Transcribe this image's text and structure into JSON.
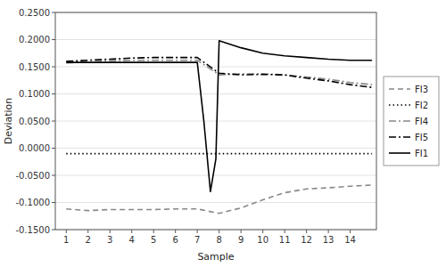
{
  "chart_data": {
    "type": "line",
    "xlabel": "Sample",
    "ylabel": "Deviation",
    "xlim": [
      0.5,
      15.2
    ],
    "ylim": [
      -0.15,
      0.25
    ],
    "xticks": [
      1,
      2,
      3,
      4,
      5,
      6,
      7,
      8,
      9,
      10,
      11,
      12,
      13,
      14
    ],
    "yticks": [
      {
        "value": -0.15,
        "label": "-0.1500"
      },
      {
        "value": -0.1,
        "label": "-0.1000"
      },
      {
        "value": -0.05,
        "label": "-0.0500"
      },
      {
        "value": 0.0,
        "label": "0.0000"
      },
      {
        "value": 0.05,
        "label": "0.0500"
      },
      {
        "value": 0.1,
        "label": "0.1000"
      },
      {
        "value": 0.15,
        "label": "0.1500"
      },
      {
        "value": 0.2,
        "label": "0.2000"
      },
      {
        "value": 0.25,
        "label": "0.2500"
      }
    ],
    "grid": true,
    "legend": "right",
    "series": [
      {
        "name": "FI3",
        "color": "#888888",
        "line_style": "dashed",
        "x": [
          1,
          2,
          3,
          4,
          5,
          6,
          7,
          8,
          9,
          10,
          11,
          12,
          13,
          14,
          15
        ],
        "values": [
          -0.112,
          -0.115,
          -0.113,
          -0.113,
          -0.113,
          -0.112,
          -0.112,
          -0.12,
          -0.11,
          -0.095,
          -0.082,
          -0.075,
          -0.073,
          -0.07,
          -0.068
        ]
      },
      {
        "name": "FI2",
        "color": "#000000",
        "line_style": "dotted",
        "x": [
          1,
          2,
          3,
          4,
          5,
          6,
          7,
          8,
          9,
          10,
          11,
          12,
          13,
          14,
          15
        ],
        "values": [
          -0.01,
          -0.01,
          -0.01,
          -0.01,
          -0.01,
          -0.01,
          -0.01,
          -0.01,
          -0.01,
          -0.01,
          -0.01,
          -0.01,
          -0.01,
          -0.01,
          -0.01
        ]
      },
      {
        "name": "FI4",
        "color": "#888888",
        "line_style": "dashdot",
        "x": [
          1,
          2,
          3,
          4,
          5,
          6,
          7,
          8,
          9,
          10,
          11,
          12,
          13,
          14,
          15
        ],
        "values": [
          0.157,
          0.159,
          0.161,
          0.162,
          0.162,
          0.162,
          0.162,
          0.135,
          0.137,
          0.137,
          0.135,
          0.131,
          0.127,
          0.121,
          0.117
        ]
      },
      {
        "name": "FI5",
        "color": "#000000",
        "line_style": "dashdot",
        "x": [
          1,
          2,
          3,
          4,
          5,
          6,
          7,
          8,
          9,
          10,
          11,
          12,
          13,
          14,
          15
        ],
        "values": [
          0.16,
          0.162,
          0.164,
          0.166,
          0.167,
          0.167,
          0.167,
          0.138,
          0.135,
          0.136,
          0.135,
          0.129,
          0.124,
          0.117,
          0.112
        ]
      },
      {
        "name": "FI1",
        "color": "#000000",
        "line_style": "solid",
        "x": [
          1,
          2,
          3,
          4,
          5,
          6,
          7,
          7.3,
          7.6,
          7.85,
          8,
          9,
          10,
          11,
          12,
          13,
          14,
          15
        ],
        "values": [
          0.158,
          0.158,
          0.158,
          0.158,
          0.158,
          0.158,
          0.158,
          0.05,
          -0.08,
          -0.02,
          0.198,
          0.185,
          0.175,
          0.17,
          0.167,
          0.164,
          0.162,
          0.162
        ]
      }
    ]
  }
}
